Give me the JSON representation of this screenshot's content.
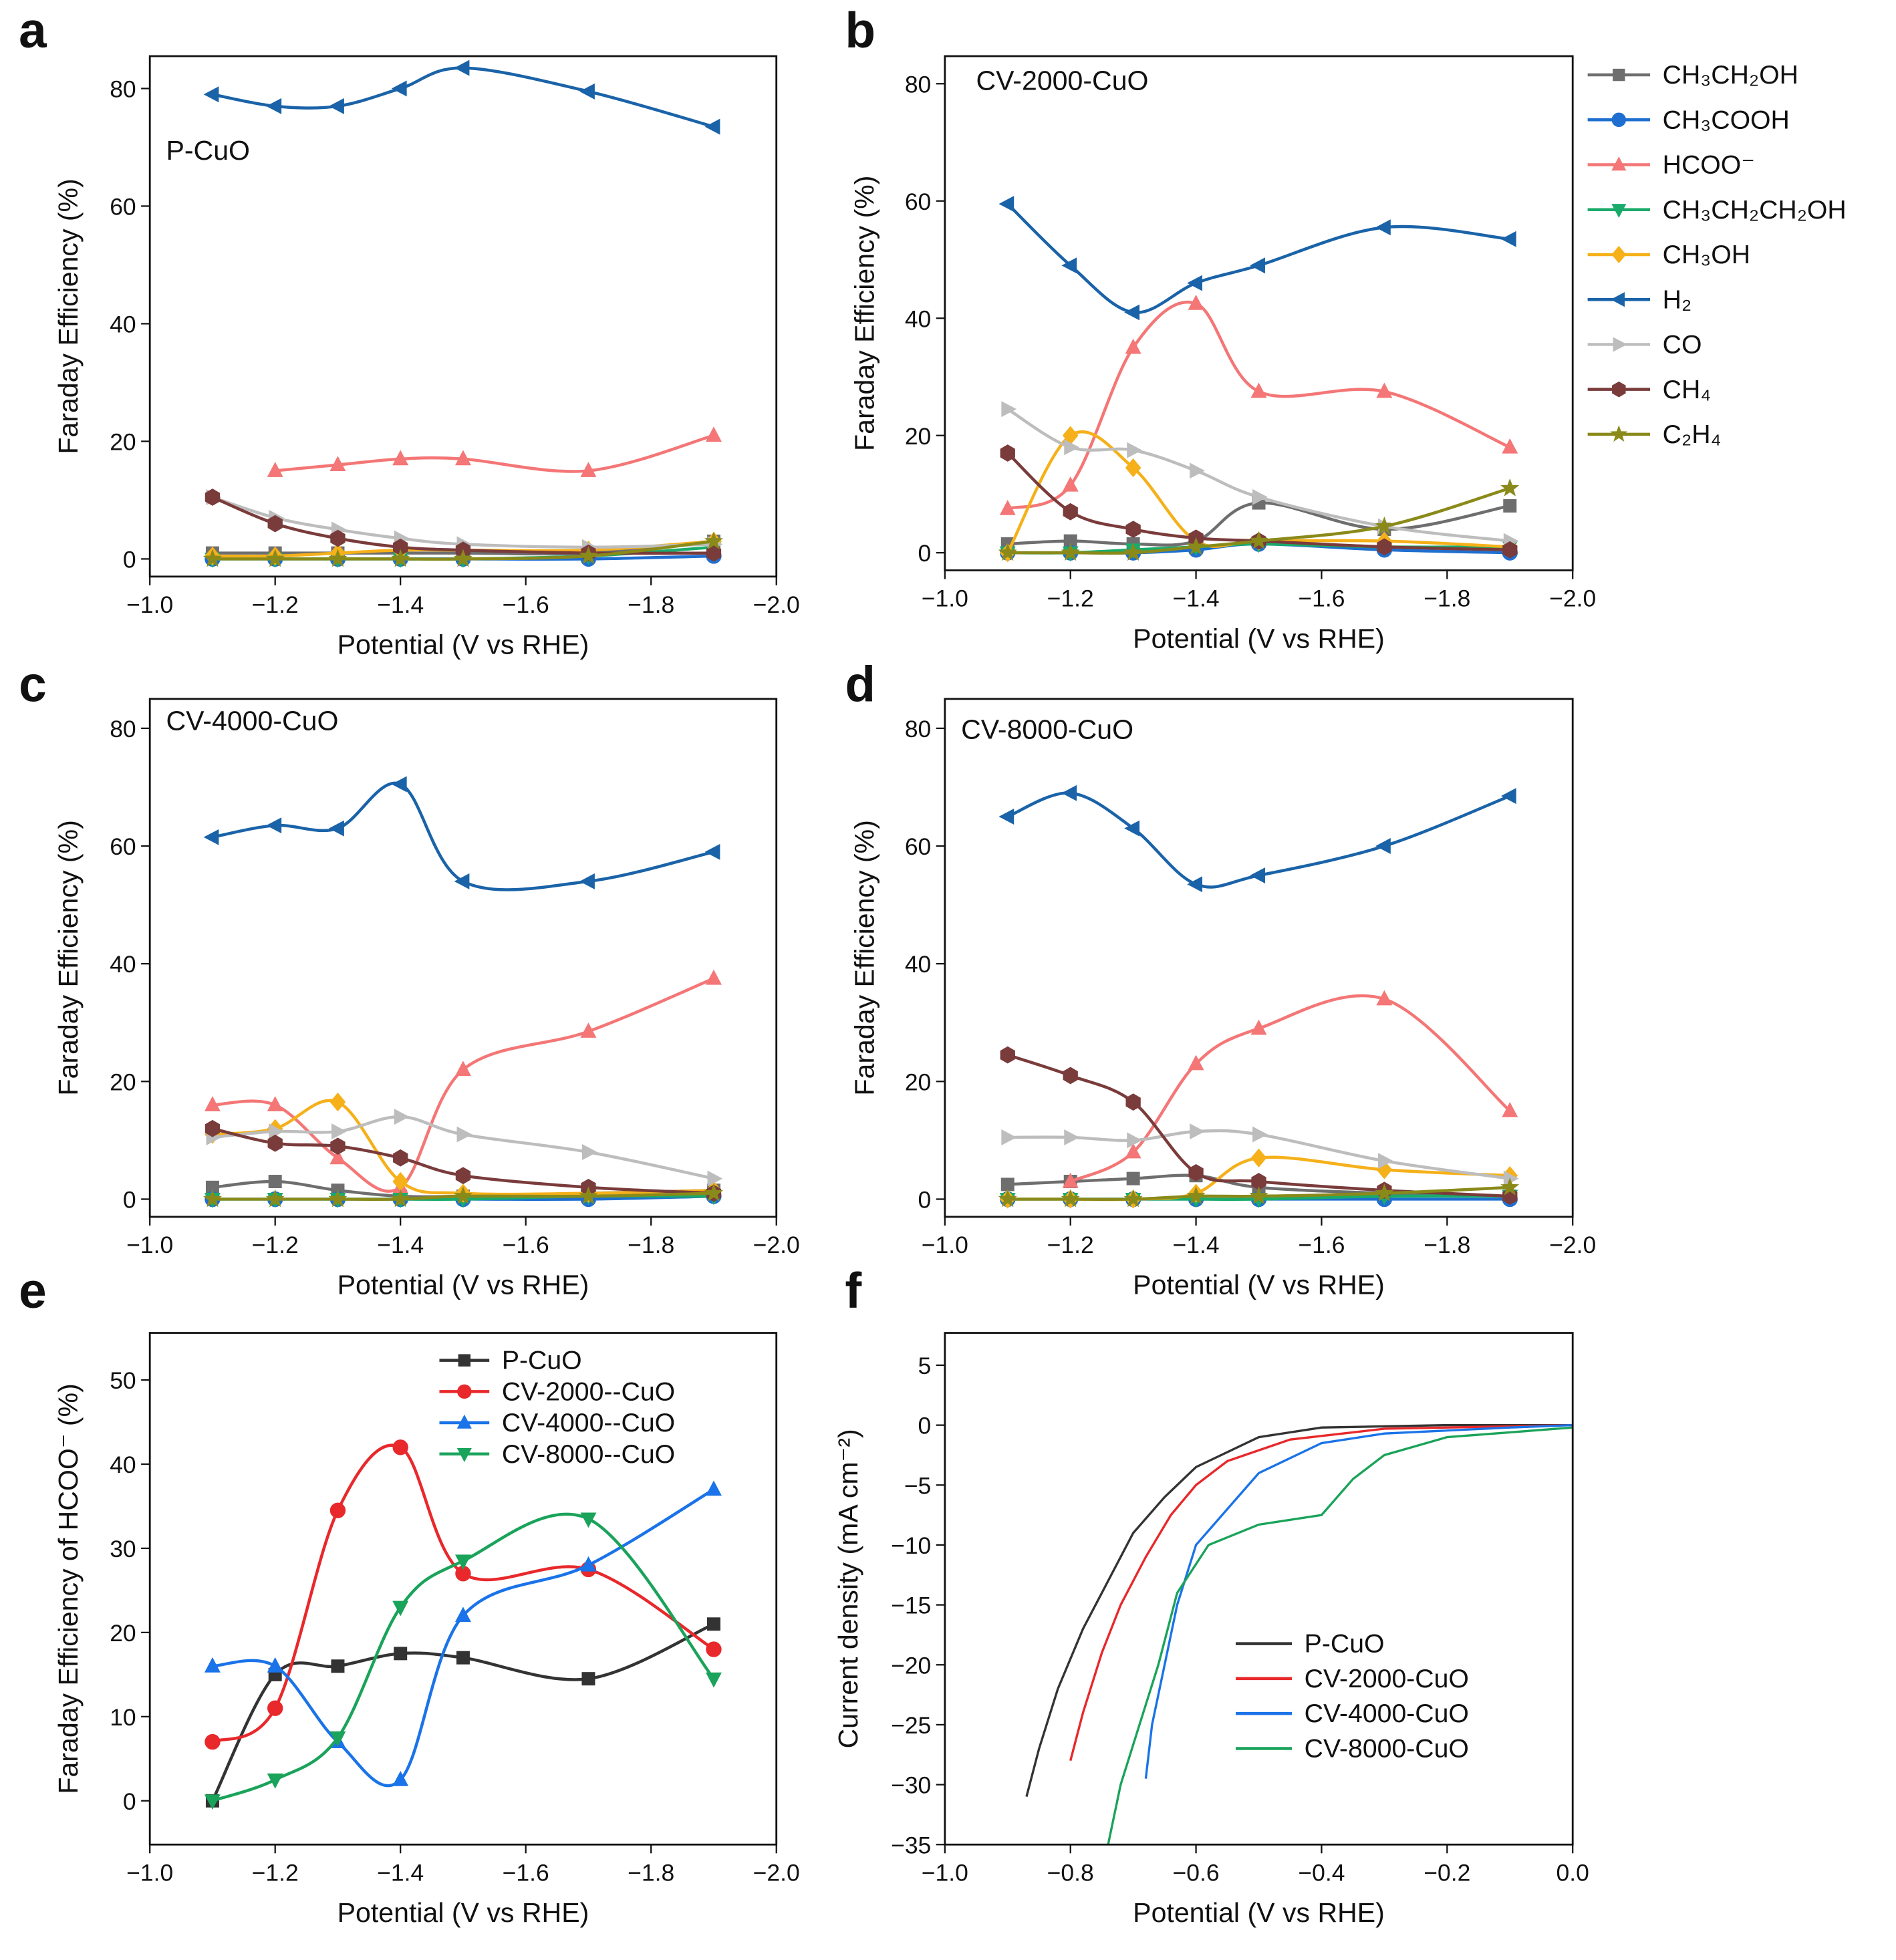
{
  "chart_data": [
    {
      "type": "line",
      "panel": "a",
      "title": "P-CuO",
      "xlabel": "Potential (V vs RHE)",
      "ylabel": "Faraday Efficiency (%)",
      "smooth": true,
      "x": [
        -1.1,
        -1.2,
        -1.3,
        -1.4,
        -1.5,
        -1.7,
        -1.9
      ],
      "xlim": [
        -1.0,
        -2.0
      ],
      "ylim": [
        -3,
        85.5
      ],
      "xticks": [
        {
          "value": -1.0,
          "label": "−1.0"
        },
        {
          "value": -1.2,
          "label": "−1.2"
        },
        {
          "value": -1.4,
          "label": "−1.4"
        },
        {
          "value": -1.6,
          "label": "−1.6"
        },
        {
          "value": -1.8,
          "label": "−1.8"
        },
        {
          "value": -2.0,
          "label": "−2.0"
        }
      ],
      "yticks": [
        0,
        20,
        40,
        60,
        80
      ],
      "series": [
        {
          "color": "#6e6e6e",
          "marker": "square",
          "values": [
            1,
            1,
            1,
            1,
            1,
            1,
            3
          ]
        },
        {
          "color": "#1f6fd0",
          "marker": "circle",
          "values": [
            0,
            0,
            0,
            0,
            0,
            0,
            0.5
          ]
        },
        {
          "color": "#f47676",
          "marker": "triangle-up",
          "values": [
            null,
            15,
            16,
            17,
            17,
            15,
            21
          ]
        },
        {
          "color": "#1aab6a",
          "marker": "triangle-down",
          "values": [
            0,
            0,
            0,
            0,
            0,
            0.5,
            2
          ]
        },
        {
          "color": "#f5b01a",
          "marker": "diamond",
          "values": [
            0.5,
            0.5,
            1,
            1.5,
            1.5,
            1.5,
            3
          ]
        },
        {
          "color": "#1a63a8",
          "marker": "triangle-left",
          "values": [
            79,
            77,
            77,
            80,
            83.5,
            79.5,
            73.5
          ]
        },
        {
          "color": "#bdbdbd",
          "marker": "triangle-right",
          "values": [
            10.5,
            7,
            5,
            3.5,
            2.5,
            2,
            2.5
          ]
        },
        {
          "color": "#7a3b3b",
          "marker": "hexagon",
          "values": [
            10.5,
            6,
            3.5,
            2,
            1.5,
            1,
            1
          ]
        },
        {
          "color": "#8a8a1a",
          "marker": "star",
          "values": [
            0,
            0,
            0,
            0,
            0,
            0.5,
            3
          ]
        }
      ]
    },
    {
      "type": "line",
      "panel": "b",
      "title": "CV-2000-CuO",
      "xlabel": "Potential (V vs RHE)",
      "ylabel": "Faraday Efficiency (%)",
      "smooth": true,
      "legend": "outside-right",
      "x": [
        -1.1,
        -1.2,
        -1.3,
        -1.4,
        -1.5,
        -1.7,
        -1.9
      ],
      "xlim": [
        -1.0,
        -2.0
      ],
      "ylim": [
        -3,
        84.7
      ],
      "xticks": [
        {
          "value": -1.0,
          "label": "−1.0"
        },
        {
          "value": -1.2,
          "label": "−1.2"
        },
        {
          "value": -1.4,
          "label": "−1.4"
        },
        {
          "value": -1.6,
          "label": "−1.6"
        },
        {
          "value": -1.8,
          "label": "−1.8"
        },
        {
          "value": -2.0,
          "label": "−2.0"
        }
      ],
      "yticks": [
        0,
        20,
        40,
        60,
        80
      ],
      "series": [
        {
          "name": "CH₃CH₂OH",
          "color": "#6e6e6e",
          "marker": "square",
          "values": [
            1.5,
            2,
            1.5,
            2,
            8.5,
            4,
            8
          ]
        },
        {
          "name": "CH₃COOH",
          "color": "#1f6fd0",
          "marker": "circle",
          "values": [
            0,
            0,
            0,
            0.5,
            1.5,
            0.5,
            0
          ]
        },
        {
          "name": "HCOO⁻",
          "color": "#f47676",
          "marker": "triangle-up",
          "values": [
            7.5,
            11.5,
            35,
            42.5,
            27.5,
            27.5,
            18
          ]
        },
        {
          "name": "CH₃CH₂CH₂OH",
          "color": "#1aab6a",
          "marker": "triangle-down",
          "values": [
            0,
            0,
            0.5,
            1,
            1.5,
            1,
            1
          ]
        },
        {
          "name": "CH₃OH",
          "color": "#f5b01a",
          "marker": "diamond",
          "values": [
            0,
            20,
            14.5,
            2,
            2,
            2,
            1
          ]
        },
        {
          "name": "H₂",
          "color": "#1a63a8",
          "marker": "triangle-left",
          "values": [
            59.5,
            49,
            41,
            46,
            49,
            55.5,
            53.5
          ]
        },
        {
          "name": "CO",
          "color": "#bdbdbd",
          "marker": "triangle-right",
          "values": [
            24.5,
            18,
            17.5,
            14,
            9.5,
            4.5,
            2
          ]
        },
        {
          "name": "CH₄",
          "color": "#7a3b3b",
          "marker": "hexagon",
          "values": [
            17,
            7,
            4,
            2.5,
            2,
            1,
            0.5
          ]
        },
        {
          "name": "C₂H₄",
          "color": "#8a8a1a",
          "marker": "star",
          "values": [
            0,
            0,
            0,
            1,
            2,
            4.5,
            11
          ]
        }
      ]
    },
    {
      "type": "line",
      "panel": "c",
      "title": "CV-4000-CuO",
      "xlabel": "Potential (V vs RHE)",
      "ylabel": "Faraday Efficiency (%)",
      "smooth": true,
      "x": [
        -1.1,
        -1.2,
        -1.3,
        -1.4,
        -1.5,
        -1.7,
        -1.9
      ],
      "xlim": [
        -1.0,
        -2.0
      ],
      "ylim": [
        -3,
        85
      ],
      "xticks": [
        {
          "value": -1.0,
          "label": "−1.0"
        },
        {
          "value": -1.2,
          "label": "−1.2"
        },
        {
          "value": -1.4,
          "label": "−1.4"
        },
        {
          "value": -1.6,
          "label": "−1.6"
        },
        {
          "value": -1.8,
          "label": "−1.8"
        },
        {
          "value": -2.0,
          "label": "−2.0"
        }
      ],
      "yticks": [
        0,
        20,
        40,
        60,
        80
      ],
      "series": [
        {
          "color": "#6e6e6e",
          "marker": "square",
          "values": [
            2,
            3,
            1.5,
            0.5,
            0.5,
            1,
            1.5
          ]
        },
        {
          "color": "#1f6fd0",
          "marker": "circle",
          "values": [
            0,
            0,
            0,
            0,
            0,
            0,
            0.5
          ]
        },
        {
          "color": "#f47676",
          "marker": "triangle-up",
          "values": [
            16,
            16,
            7,
            2,
            22,
            28.5,
            37.5
          ]
        },
        {
          "color": "#1aab6a",
          "marker": "triangle-down",
          "values": [
            0,
            0,
            0,
            0,
            0,
            0.5,
            0.5
          ]
        },
        {
          "color": "#f5b01a",
          "marker": "diamond",
          "values": [
            11,
            12,
            16.5,
            3,
            1,
            1,
            1.5
          ]
        },
        {
          "color": "#1a63a8",
          "marker": "triangle-left",
          "values": [
            61.5,
            63.5,
            63,
            70.5,
            54,
            54,
            59
          ]
        },
        {
          "color": "#bdbdbd",
          "marker": "triangle-right",
          "values": [
            10.5,
            11.5,
            11.5,
            14,
            11,
            8,
            3.5
          ]
        },
        {
          "color": "#7a3b3b",
          "marker": "hexagon",
          "values": [
            12,
            9.5,
            9,
            7,
            4,
            2,
            1
          ]
        },
        {
          "color": "#8a8a1a",
          "marker": "star",
          "values": [
            0,
            0,
            0,
            0,
            0.5,
            0.5,
            1
          ]
        }
      ]
    },
    {
      "type": "line",
      "panel": "d",
      "title": "CV-8000-CuO",
      "xlabel": "Potential (V vs RHE)",
      "ylabel": "Faraday Efficiency (%)",
      "smooth": true,
      "x": [
        -1.1,
        -1.2,
        -1.3,
        -1.4,
        -1.5,
        -1.7,
        -1.9
      ],
      "xlim": [
        -1.0,
        -2.0
      ],
      "ylim": [
        -3,
        85
      ],
      "xticks": [
        {
          "value": -1.0,
          "label": "−1.0"
        },
        {
          "value": -1.2,
          "label": "−1.2"
        },
        {
          "value": -1.4,
          "label": "−1.4"
        },
        {
          "value": -1.6,
          "label": "−1.6"
        },
        {
          "value": -1.8,
          "label": "−1.8"
        },
        {
          "value": -2.0,
          "label": "−2.0"
        }
      ],
      "yticks": [
        0,
        20,
        40,
        60,
        80
      ],
      "series": [
        {
          "color": "#6e6e6e",
          "marker": "square",
          "values": [
            2.5,
            3,
            3.5,
            4,
            2,
            1,
            0.5
          ]
        },
        {
          "color": "#1f6fd0",
          "marker": "circle",
          "values": [
            0,
            0,
            0,
            0,
            0,
            0,
            0
          ]
        },
        {
          "color": "#f47676",
          "marker": "triangle-up",
          "values": [
            null,
            3,
            8,
            23,
            29,
            34,
            15
          ]
        },
        {
          "color": "#1aab6a",
          "marker": "triangle-down",
          "values": [
            0,
            0,
            0,
            0,
            0,
            0.5,
            0.5
          ]
        },
        {
          "color": "#f5b01a",
          "marker": "diamond",
          "values": [
            0,
            0,
            0,
            1,
            7,
            5,
            4
          ]
        },
        {
          "color": "#1a63a8",
          "marker": "triangle-left",
          "values": [
            65,
            69,
            63,
            53.5,
            55,
            60,
            68.5
          ]
        },
        {
          "color": "#bdbdbd",
          "marker": "triangle-right",
          "values": [
            10.5,
            10.5,
            10,
            11.5,
            11,
            6.5,
            3.5
          ]
        },
        {
          "color": "#7a3b3b",
          "marker": "hexagon",
          "values": [
            24.5,
            21,
            16.5,
            4.5,
            3,
            1.5,
            0.5
          ]
        },
        {
          "color": "#8a8a1a",
          "marker": "star",
          "values": [
            0,
            0,
            0,
            0.5,
            0.5,
            1,
            2
          ]
        }
      ]
    },
    {
      "type": "line",
      "panel": "e",
      "xlabel": "Potential (V vs RHE)",
      "ylabel": "Faraday Efficiency of HCOO⁻ (%)",
      "smooth": true,
      "legend": "upper-center",
      "x": [
        -1.1,
        -1.2,
        -1.3,
        -1.4,
        -1.5,
        -1.7,
        -1.9
      ],
      "xlim": [
        -1.0,
        -2.0
      ],
      "ylim": [
        -5.2,
        55.6
      ],
      "xticks": [
        {
          "value": -1.0,
          "label": "−1.0"
        },
        {
          "value": -1.2,
          "label": "−1.2"
        },
        {
          "value": -1.4,
          "label": "−1.4"
        },
        {
          "value": -1.6,
          "label": "−1.6"
        },
        {
          "value": -1.8,
          "label": "−1.8"
        },
        {
          "value": -2.0,
          "label": "−2.0"
        }
      ],
      "yticks": [
        0,
        10,
        20,
        30,
        40,
        50
      ],
      "series": [
        {
          "name": "P-CuO",
          "color": "#333333",
          "marker": "square",
          "values": [
            0,
            15,
            16,
            17.5,
            17,
            14.5,
            21
          ]
        },
        {
          "name": "CV-2000--CuO",
          "color": "#e8282b",
          "marker": "circle",
          "values": [
            7,
            11,
            34.5,
            42,
            27,
            27.5,
            18
          ]
        },
        {
          "name": "CV-4000--CuO",
          "color": "#1a73e8",
          "marker": "triangle-up",
          "values": [
            16,
            16,
            7,
            2.5,
            22,
            28,
            37
          ]
        },
        {
          "name": "CV-8000--CuO",
          "color": "#1aa35a",
          "marker": "triangle-down",
          "values": [
            0,
            2.5,
            7.5,
            23,
            28.5,
            33.5,
            14.5
          ]
        }
      ]
    },
    {
      "type": "line",
      "panel": "f",
      "xlabel": "Potential (V vs RHE)",
      "ylabel": "Current density (mA cm⁻²)",
      "smooth": false,
      "legend": "lower-center",
      "xlim": [
        -1.0,
        0.0
      ],
      "ylim": [
        -35,
        7.7
      ],
      "xticks": [
        {
          "value": -1.0,
          "label": "−1.0"
        },
        {
          "value": -0.8,
          "label": "−0.8"
        },
        {
          "value": -0.6,
          "label": "−0.6"
        },
        {
          "value": -0.4,
          "label": "−0.4"
        },
        {
          "value": -0.2,
          "label": "−0.2"
        },
        {
          "value": 0.0,
          "label": "0.0"
        }
      ],
      "yticks": [
        {
          "value": 5,
          "label": "5"
        },
        {
          "value": 0,
          "label": "0"
        },
        {
          "value": -5,
          "label": "−5"
        },
        {
          "value": -10,
          "label": "−10"
        },
        {
          "value": -15,
          "label": "−15"
        },
        {
          "value": -20,
          "label": "−20"
        },
        {
          "value": -25,
          "label": "−25"
        },
        {
          "value": -30,
          "label": "−30"
        },
        {
          "value": -35,
          "label": "−35"
        }
      ],
      "series": [
        {
          "name": "P-CuO",
          "color": "#333333",
          "x": [
            -0.87,
            -0.85,
            -0.82,
            -0.78,
            -0.74,
            -0.7,
            -0.65,
            -0.6,
            -0.5,
            -0.4,
            -0.2,
            0
          ],
          "values": [
            -31,
            -27,
            -22,
            -17,
            -13,
            -9,
            -6,
            -3.5,
            -1,
            -0.2,
            0,
            0
          ]
        },
        {
          "name": "CV-2000-CuO",
          "color": "#e8282b",
          "x": [
            -0.8,
            -0.78,
            -0.75,
            -0.72,
            -0.68,
            -0.64,
            -0.6,
            -0.55,
            -0.45,
            -0.3,
            0
          ],
          "values": [
            -28,
            -24,
            -19,
            -15,
            -11,
            -7.5,
            -5,
            -3,
            -1.2,
            -0.3,
            0
          ]
        },
        {
          "name": "CV-4000-CuO",
          "color": "#1a73e8",
          "x": [
            -0.68,
            -0.67,
            -0.65,
            -0.63,
            -0.6,
            -0.55,
            -0.5,
            -0.4,
            -0.3,
            -0.1,
            0
          ],
          "values": [
            -29.5,
            -25,
            -20,
            -15,
            -10,
            -7,
            -4,
            -1.5,
            -0.7,
            -0.2,
            0
          ]
        },
        {
          "name": "CV-8000-CuO",
          "color": "#1aa35a",
          "x": [
            -0.74,
            -0.72,
            -0.69,
            -0.66,
            -0.63,
            -0.58,
            -0.5,
            -0.4,
            -0.35,
            -0.3,
            -0.2,
            0
          ],
          "values": [
            -35,
            -30,
            -25,
            -20,
            -14,
            -10,
            -8.3,
            -7.5,
            -4.5,
            -2.5,
            -1,
            -0.2
          ]
        }
      ]
    }
  ]
}
